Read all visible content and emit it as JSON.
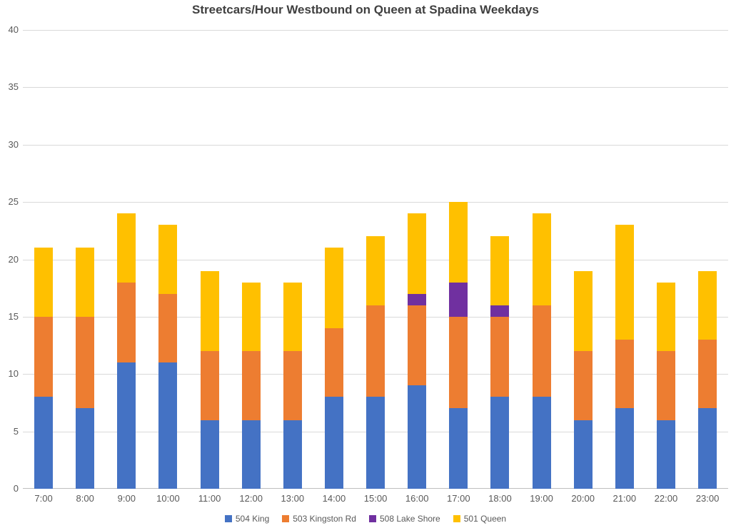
{
  "chart_data": {
    "type": "bar",
    "stacked": true,
    "title": "Streetcars/Hour Westbound on Queen at Spadina Weekdays",
    "categories": [
      "7:00",
      "8:00",
      "9:00",
      "10:00",
      "11:00",
      "12:00",
      "13:00",
      "14:00",
      "15:00",
      "16:00",
      "17:00",
      "18:00",
      "19:00",
      "20:00",
      "21:00",
      "22:00",
      "23:00"
    ],
    "series": [
      {
        "name": "504 King",
        "color": "#4472C4",
        "values": [
          8,
          7,
          11,
          11,
          6,
          6,
          6,
          8,
          8,
          9,
          7,
          8,
          8,
          6,
          7,
          6,
          7
        ]
      },
      {
        "name": "503 Kingston Rd",
        "color": "#ED7D31",
        "values": [
          7,
          8,
          7,
          6,
          6,
          6,
          6,
          6,
          8,
          7,
          8,
          7,
          8,
          6,
          6,
          6,
          6
        ]
      },
      {
        "name": "508 Lake Shore",
        "color": "#7030A0",
        "values": [
          0,
          0,
          0,
          0,
          0,
          0,
          0,
          0,
          0,
          1,
          3,
          1,
          0,
          0,
          0,
          0,
          0
        ]
      },
      {
        "name": "501 Queen",
        "color": "#FFC000",
        "values": [
          6,
          6,
          6,
          6,
          7,
          6,
          6,
          7,
          6,
          7,
          7,
          6,
          8,
          7,
          10,
          6,
          6
        ]
      }
    ],
    "totals": [
      21,
      21,
      24,
      23,
      19,
      18,
      18,
      21,
      22,
      24,
      25,
      22,
      24,
      19,
      23,
      18,
      19
    ],
    "xlabel": "",
    "ylabel": "",
    "ylim": [
      0,
      40
    ],
    "ytick_step": 5,
    "yticks": [
      0,
      5,
      10,
      15,
      20,
      25,
      30,
      35,
      40
    ],
    "grid": true,
    "legend_position": "bottom"
  },
  "colors": {
    "gridline": "#D9D9D9",
    "axis_line": "#BFBFBF",
    "tick_label": "#595959",
    "title": "#404040",
    "background": "#FFFFFF"
  }
}
